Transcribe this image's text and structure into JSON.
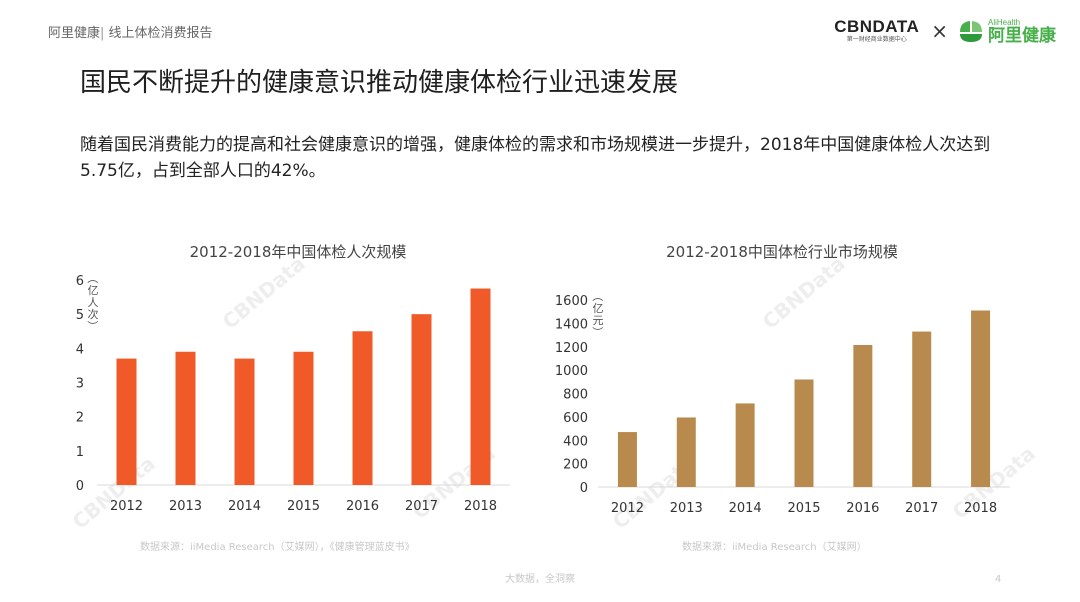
{
  "header": {
    "brand": "阿里健康",
    "separator": "|",
    "report_name": " 线上体检消费报告"
  },
  "logos": {
    "cbndata": "CBNDATA",
    "cbndata_sub": "第一财经商业数据中心",
    "times": "×",
    "alihealth_en": "AliHealth",
    "alihealth_cn": "阿里健康"
  },
  "title": "国民不断提升的健康意识推动健康体检行业迅速发展",
  "paragraph": "随着国民消费能力的提高和社会健康意识的增强，健康体检的需求和市场规模进一步提升，2018年中国健康体检人次达到5.75亿，占到全部人口的42%。",
  "colors": {
    "bar_left": "#f05a28",
    "bar_right": "#b88a4e",
    "alihealth_green": "#48b04b"
  },
  "chart_data": [
    {
      "type": "bar",
      "title": "2012-2018年中国体检人次规模",
      "ylabel": "（亿人次）",
      "categories": [
        "2012",
        "2013",
        "2014",
        "2015",
        "2016",
        "2017",
        "2018"
      ],
      "values": [
        3.7,
        3.9,
        3.7,
        3.9,
        4.5,
        5.0,
        5.75
      ],
      "ylim": [
        0,
        6
      ],
      "yticks": [
        "0",
        "1",
        "2",
        "3",
        "4",
        "5",
        "6"
      ],
      "grid": false,
      "source": "数据来源：iiMedia Research（艾媒网），《健康管理蓝皮书》"
    },
    {
      "type": "bar",
      "title": "2012-2018中国体检行业市场规模",
      "ylabel": "（亿元）",
      "categories": [
        "2012",
        "2013",
        "2014",
        "2015",
        "2016",
        "2017",
        "2018"
      ],
      "values": [
        470,
        595,
        715,
        920,
        1215,
        1330,
        1510
      ],
      "ylim": [
        0,
        1600
      ],
      "yticks": [
        "0",
        "200",
        "400",
        "600",
        "800",
        "1000",
        "1200",
        "1400",
        "1600"
      ],
      "grid": false,
      "source": "数据来源：iiMedia Research（艾媒网）"
    }
  ],
  "footer": {
    "center": "大数据，全洞察",
    "page": "4"
  }
}
